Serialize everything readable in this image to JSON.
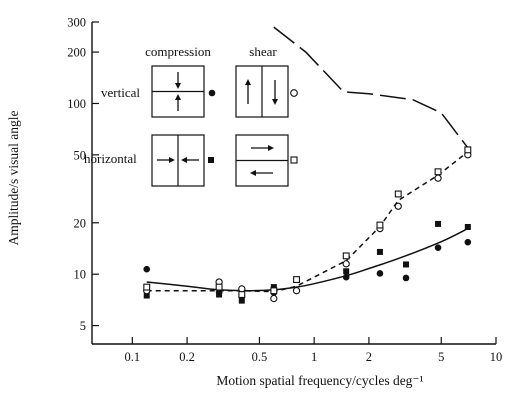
{
  "chart_data": {
    "type": "scatter",
    "title": "",
    "xlabel": "Motion spatial frequency/cycles deg⁻¹",
    "ylabel": "Amplitude/s visual angle",
    "xscale": "log",
    "yscale": "log",
    "xlim": [
      0.06,
      10
    ],
    "ylim": [
      3.9,
      300
    ],
    "x_ticks": [
      {
        "value": 0.1,
        "label": "0.1"
      },
      {
        "value": 0.2,
        "label": "0.2"
      },
      {
        "value": 0.5,
        "label": "0.5"
      },
      {
        "value": 1,
        "label": "1"
      },
      {
        "value": 2,
        "label": "2"
      },
      {
        "value": 5,
        "label": "5"
      },
      {
        "value": 10,
        "label": "10"
      }
    ],
    "y_ticks": [
      {
        "value": 5,
        "label": "5"
      },
      {
        "value": 10,
        "label": "10"
      },
      {
        "value": 20,
        "label": "20"
      },
      {
        "value": 50,
        "label": "50"
      },
      {
        "value": 100,
        "label": "100"
      },
      {
        "value": 200,
        "label": "200"
      },
      {
        "value": 300,
        "label": "300"
      }
    ],
    "legend": {
      "col_headers": [
        "compression",
        "shear"
      ],
      "row_labels": [
        "vertical",
        "horizontal"
      ],
      "placement": "top-left"
    },
    "series": [
      {
        "symbol": "filled-circle",
        "condition": "vertical compression",
        "x": [
          0.12,
          0.3,
          0.4,
          0.6,
          0.8,
          1.5,
          2.3,
          3.2,
          4.8,
          7.0
        ],
        "y": [
          10.7,
          7.8,
          7.6,
          7.8,
          8.0,
          9.6,
          10.1,
          9.5,
          14.3,
          15.4
        ]
      },
      {
        "symbol": "filled-square",
        "condition": "horizontal compression",
        "x": [
          0.12,
          0.3,
          0.4,
          0.6,
          0.8,
          1.5,
          2.3,
          3.2,
          4.8,
          7.0
        ],
        "y": [
          7.5,
          7.6,
          7.0,
          8.4,
          9.3,
          10.4,
          13.5,
          11.4,
          19.7,
          18.9
        ]
      },
      {
        "symbol": "open-circle",
        "condition": "vertical shear",
        "x": [
          0.12,
          0.3,
          0.4,
          0.6,
          0.8,
          1.5,
          2.3,
          2.9,
          4.8,
          7.0
        ],
        "y": [
          8.0,
          9.0,
          8.2,
          7.2,
          8.0,
          11.5,
          18.5,
          25.0,
          36.5,
          50.0
        ]
      },
      {
        "symbol": "open-square",
        "condition": "horizontal shear",
        "x": [
          0.12,
          0.3,
          0.4,
          0.6,
          0.8,
          1.5,
          2.3,
          2.9,
          4.8,
          7.0
        ],
        "y": [
          8.4,
          8.4,
          7.6,
          8.0,
          9.3,
          12.8,
          19.4,
          29.5,
          39.8,
          53.5
        ]
      }
    ],
    "curves": [
      {
        "style": "solid",
        "x": [
          0.12,
          0.2,
          0.3,
          0.45,
          0.6,
          0.8,
          1.0,
          1.5,
          2.0,
          3.0,
          5.0,
          7.0
        ],
        "y": [
          9.0,
          8.5,
          8.1,
          8.0,
          8.1,
          8.4,
          8.8,
          9.8,
          10.8,
          12.5,
          15.5,
          18.5
        ]
      },
      {
        "style": "dashed",
        "x": [
          0.12,
          0.3,
          0.4,
          0.6,
          0.8,
          1.5,
          2.3,
          2.9,
          4.8,
          7.0
        ],
        "y": [
          8.0,
          8.0,
          8.0,
          7.9,
          8.5,
          12.0,
          19.0,
          27.0,
          38.0,
          52.0
        ]
      },
      {
        "style": "long-dash",
        "x": [
          0.6,
          0.9,
          1.45,
          2.0,
          3.5,
          5.0,
          7.0
        ],
        "y": [
          280,
          200,
          117,
          114,
          105,
          88,
          55
        ]
      }
    ]
  }
}
